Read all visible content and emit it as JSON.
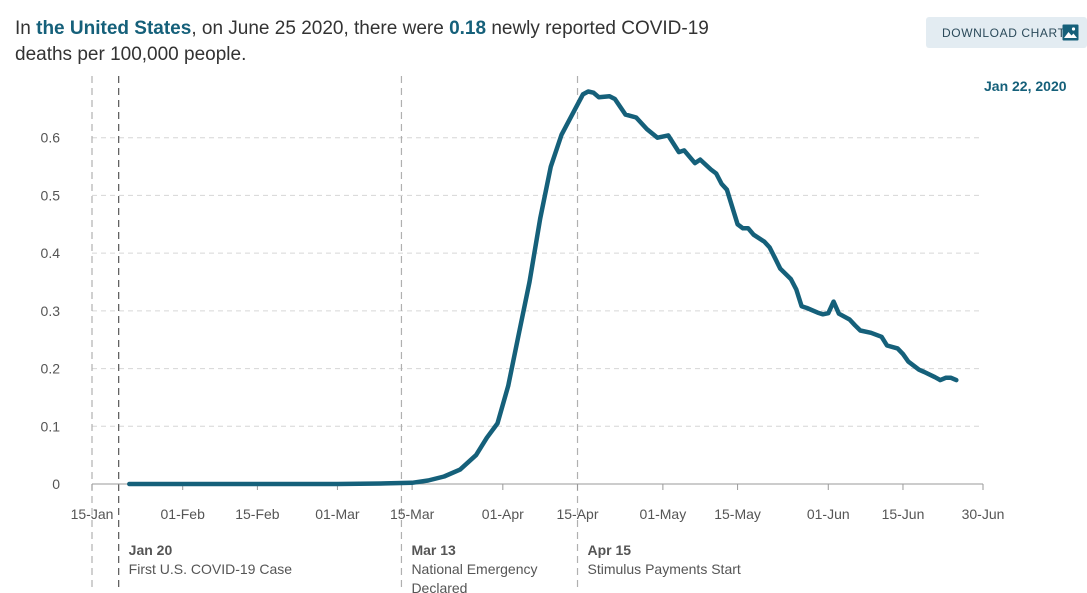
{
  "headline": {
    "prefix": "In ",
    "location": "the United States",
    "mid": ", on June 25 2020, there were ",
    "value": "0.18",
    "suffix": " newly reported COVID-19 deaths per 100,000 people."
  },
  "download_button": {
    "label": "DOWNLOAD CHART",
    "icon": "image-icon"
  },
  "date_tag": "Jan 22, 2020",
  "colors": {
    "line": "#15607a",
    "accent": "#15607a",
    "button_bg": "#e3ecf2"
  },
  "chart_data": {
    "type": "line",
    "title": "",
    "xlabel": "",
    "ylabel": "",
    "ylim": [
      0,
      0.7
    ],
    "y_ticks": [
      "0",
      "0.1",
      "0.2",
      "0.3",
      "0.4",
      "0.5",
      "0.6"
    ],
    "x_ticks": [
      {
        "date": "2020-01-15",
        "label": "15-Jan"
      },
      {
        "date": "2020-02-01",
        "label": "01-Feb"
      },
      {
        "date": "2020-02-15",
        "label": "15-Feb"
      },
      {
        "date": "2020-03-01",
        "label": "01-Mar"
      },
      {
        "date": "2020-03-15",
        "label": "15-Mar"
      },
      {
        "date": "2020-04-01",
        "label": "01-Apr"
      },
      {
        "date": "2020-04-15",
        "label": "15-Apr"
      },
      {
        "date": "2020-05-01",
        "label": "01-May"
      },
      {
        "date": "2020-05-15",
        "label": "15-May"
      },
      {
        "date": "2020-06-01",
        "label": "01-Jun"
      },
      {
        "date": "2020-06-15",
        "label": "15-Jun"
      },
      {
        "date": "2020-06-30",
        "label": "30-Jun"
      }
    ],
    "grid": true,
    "annotations": [
      {
        "date": "2020-01-20",
        "title": "Jan 20",
        "lines": [
          "First U.S. COVID-19 Case"
        ]
      },
      {
        "date": "2020-03-13",
        "title": "Mar 13",
        "lines": [
          "National Emergency",
          "Declared"
        ]
      },
      {
        "date": "2020-04-15",
        "title": "Apr 15",
        "lines": [
          "Stimulus Payments Start"
        ]
      }
    ],
    "series": [
      {
        "points": [
          [
            "2020-01-22",
            0
          ],
          [
            "2020-02-15",
            0
          ],
          [
            "2020-03-01",
            0
          ],
          [
            "2020-03-10",
            0.001
          ],
          [
            "2020-03-15",
            0.002
          ],
          [
            "2020-03-18",
            0.006
          ],
          [
            "2020-03-21",
            0.013
          ],
          [
            "2020-03-24",
            0.025
          ],
          [
            "2020-03-27",
            0.05
          ],
          [
            "2020-03-29",
            0.08
          ],
          [
            "2020-03-31",
            0.105
          ],
          [
            "2020-04-02",
            0.17
          ],
          [
            "2020-04-04",
            0.26
          ],
          [
            "2020-04-06",
            0.35
          ],
          [
            "2020-04-08",
            0.46
          ],
          [
            "2020-04-10",
            0.55
          ],
          [
            "2020-04-12",
            0.605
          ],
          [
            "2020-04-14",
            0.64
          ],
          [
            "2020-04-16",
            0.675
          ],
          [
            "2020-04-17",
            0.68
          ],
          [
            "2020-04-18",
            0.678
          ],
          [
            "2020-04-19",
            0.67
          ],
          [
            "2020-04-21",
            0.672
          ],
          [
            "2020-04-22",
            0.667
          ],
          [
            "2020-04-24",
            0.64
          ],
          [
            "2020-04-26",
            0.635
          ],
          [
            "2020-04-28",
            0.615
          ],
          [
            "2020-04-30",
            0.6
          ],
          [
            "2020-05-02",
            0.604
          ],
          [
            "2020-05-04",
            0.575
          ],
          [
            "2020-05-05",
            0.578
          ],
          [
            "2020-05-07",
            0.556
          ],
          [
            "2020-05-08",
            0.562
          ],
          [
            "2020-05-10",
            0.545
          ],
          [
            "2020-05-11",
            0.538
          ],
          [
            "2020-05-12",
            0.52
          ],
          [
            "2020-05-13",
            0.51
          ],
          [
            "2020-05-15",
            0.45
          ],
          [
            "2020-05-16",
            0.443
          ],
          [
            "2020-05-17",
            0.443
          ],
          [
            "2020-05-18",
            0.432
          ],
          [
            "2020-05-20",
            0.42
          ],
          [
            "2020-05-21",
            0.41
          ],
          [
            "2020-05-22",
            0.392
          ],
          [
            "2020-05-23",
            0.373
          ],
          [
            "2020-05-25",
            0.355
          ],
          [
            "2020-05-26",
            0.337
          ],
          [
            "2020-05-27",
            0.308
          ],
          [
            "2020-05-28",
            0.305
          ],
          [
            "2020-05-30",
            0.297
          ],
          [
            "2020-05-31",
            0.294
          ],
          [
            "2020-06-01",
            0.296
          ],
          [
            "2020-06-02",
            0.316
          ],
          [
            "2020-06-03",
            0.295
          ],
          [
            "2020-06-05",
            0.285
          ],
          [
            "2020-06-06",
            0.275
          ],
          [
            "2020-06-07",
            0.266
          ],
          [
            "2020-06-09",
            0.262
          ],
          [
            "2020-06-11",
            0.255
          ],
          [
            "2020-06-12",
            0.24
          ],
          [
            "2020-06-14",
            0.235
          ],
          [
            "2020-06-15",
            0.225
          ],
          [
            "2020-06-16",
            0.212
          ],
          [
            "2020-06-18",
            0.198
          ],
          [
            "2020-06-19",
            0.194
          ],
          [
            "2020-06-21",
            0.185
          ],
          [
            "2020-06-22",
            0.18
          ],
          [
            "2020-06-23",
            0.184
          ],
          [
            "2020-06-24",
            0.184
          ],
          [
            "2020-06-25",
            0.18
          ]
        ]
      }
    ]
  }
}
